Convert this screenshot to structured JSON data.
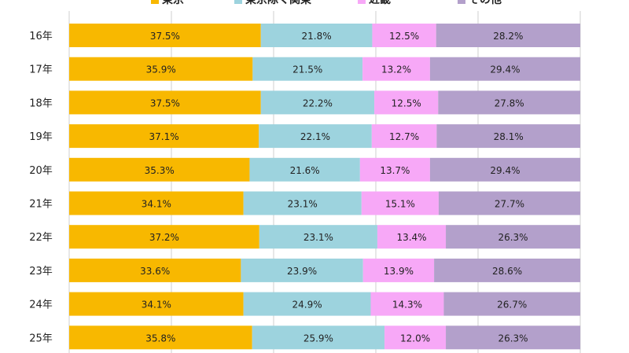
{
  "chart_data": {
    "type": "bar",
    "orientation": "horizontal",
    "stacked": true,
    "percent_stacked": true,
    "categories": [
      "16年",
      "17年",
      "18年",
      "19年",
      "20年",
      "21年",
      "22年",
      "23年",
      "24年",
      "25年"
    ],
    "series": [
      {
        "name": "東京",
        "color": "#F8B800",
        "values": [
          37.5,
          35.9,
          37.5,
          37.1,
          35.3,
          34.1,
          37.2,
          33.6,
          34.1,
          35.8
        ]
      },
      {
        "name": "東京除く関東",
        "color": "#9DD3DE",
        "values": [
          21.8,
          21.5,
          22.2,
          22.1,
          21.6,
          23.1,
          23.1,
          23.9,
          24.9,
          25.9
        ]
      },
      {
        "name": "近畿",
        "color": "#F7A8F7",
        "values": [
          12.5,
          13.2,
          12.5,
          12.7,
          13.7,
          15.1,
          13.4,
          13.9,
          14.3,
          12.0
        ]
      },
      {
        "name": "その他",
        "color": "#B3A0CB",
        "values": [
          28.2,
          29.4,
          27.8,
          28.1,
          29.4,
          27.7,
          26.3,
          28.6,
          26.7,
          26.3
        ]
      }
    ],
    "data_labels": [
      [
        "37.5%",
        "21.8%",
        "12.5%",
        "28.2%"
      ],
      [
        "35.9%",
        "21.5%",
        "13.2%",
        "29.4%"
      ],
      [
        "37.5%",
        "22.2%",
        "12.5%",
        "27.8%"
      ],
      [
        "37.1%",
        "22.1%",
        "12.7%",
        "28.1%"
      ],
      [
        "35.3%",
        "21.6%",
        "13.7%",
        "29.4%"
      ],
      [
        "34.1%",
        "23.1%",
        "15.1%",
        "27.7%"
      ],
      [
        "37.2%",
        "23.1%",
        "13.4%",
        "26.3%"
      ],
      [
        "33.6%",
        "23.9%",
        "13.9%",
        "28.6%"
      ],
      [
        "34.1%",
        "24.9%",
        "14.3%",
        "26.7%"
      ],
      [
        "35.8%",
        "25.9%",
        "12.0%",
        "26.3%"
      ]
    ],
    "xlim": [
      0,
      100
    ],
    "grid": true,
    "legend_position": "top"
  }
}
